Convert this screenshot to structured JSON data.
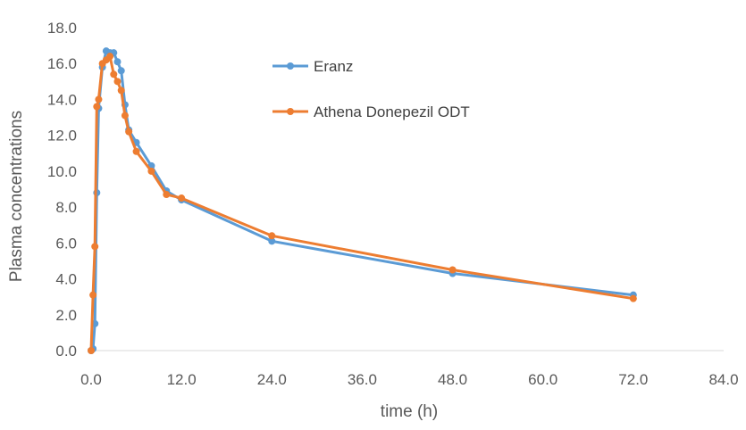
{
  "chart_data": {
    "type": "line",
    "title": "",
    "xlabel": "time (h)",
    "ylabel": "Plasma concentrations",
    "xlim": [
      0,
      84
    ],
    "ylim": [
      0,
      18
    ],
    "xticks": [
      0,
      12,
      24,
      36,
      48,
      60,
      72,
      84
    ],
    "yticks": [
      0,
      2,
      4,
      6,
      8,
      10,
      12,
      14,
      16,
      18
    ],
    "xtick_labels": [
      "0.0",
      "12.0",
      "24.0",
      "36.0",
      "48.0",
      "60.0",
      "72.0",
      "84.0"
    ],
    "ytick_labels": [
      "0.0",
      "2.0",
      "4.0",
      "6.0",
      "8.0",
      "10.0",
      "12.0",
      "14.0",
      "16.0",
      "18.0"
    ],
    "grid": false,
    "legend_position": "top-center",
    "series": [
      {
        "name": "Eranz",
        "color": "#5B9BD5",
        "x": [
          0,
          0.25,
          0.5,
          0.75,
          1.0,
          1.5,
          2.0,
          2.5,
          3.0,
          3.5,
          4.0,
          4.5,
          5.0,
          6.0,
          8.0,
          10.0,
          12.0,
          24.0,
          48.0,
          72.0
        ],
        "y": [
          0,
          0.1,
          1.5,
          8.8,
          13.5,
          15.8,
          16.7,
          16.6,
          16.6,
          16.1,
          15.6,
          13.7,
          12.3,
          11.6,
          10.3,
          8.9,
          8.4,
          6.1,
          4.3,
          3.1
        ]
      },
      {
        "name": "Athena Donepezil ODT",
        "color": "#ED7D31",
        "x": [
          0,
          0.25,
          0.5,
          0.75,
          1.0,
          1.5,
          2.0,
          2.5,
          3.0,
          3.5,
          4.0,
          4.5,
          5.0,
          6.0,
          8.0,
          10.0,
          12.0,
          24.0,
          48.0,
          72.0
        ],
        "y": [
          0,
          3.1,
          5.8,
          13.6,
          14.0,
          16.0,
          16.2,
          16.4,
          15.4,
          15.0,
          14.5,
          13.1,
          12.2,
          11.1,
          10.0,
          8.7,
          8.5,
          6.4,
          4.5,
          2.9
        ]
      }
    ]
  }
}
